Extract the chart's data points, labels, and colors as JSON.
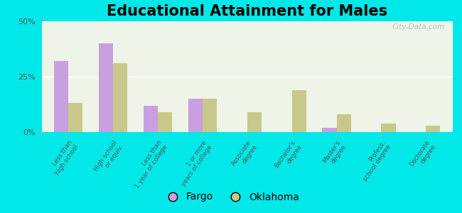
{
  "title": "Educational Attainment for Males",
  "categories": [
    "Less than\nhigh school",
    "High school\nor equiv.",
    "Less than\n1 year of college",
    "1 or more\nyears of college",
    "Associate\ndegree",
    "Bachelor's\ndegree",
    "Master's\ndegree",
    "Profess.\nschool degree",
    "Doctorate\ndegree"
  ],
  "fargo_values": [
    32,
    40,
    12,
    15,
    0,
    0,
    2,
    0,
    0
  ],
  "oklahoma_values": [
    13,
    31,
    9,
    15,
    9,
    19,
    8,
    4,
    3
  ],
  "fargo_color": "#c8a0e0",
  "oklahoma_color": "#c8c88a",
  "background_outer": "#00e8e8",
  "background_inner": "#eef4e8",
  "ylim": [
    0,
    50
  ],
  "yticks": [
    0,
    25,
    50
  ],
  "ytick_labels": [
    "0%",
    "25%",
    "50%"
  ],
  "title_fontsize": 15,
  "legend_labels": [
    "Fargo",
    "Oklahoma"
  ]
}
